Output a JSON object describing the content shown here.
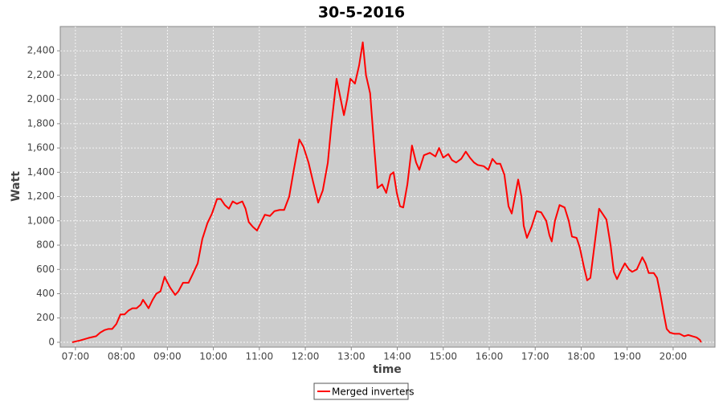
{
  "chart_data": {
    "type": "line",
    "title": "30-5-2016",
    "x_label": "time",
    "y_label": "Watt",
    "xlim": [
      6.67,
      20.91
    ],
    "ylim": [
      -40,
      2600
    ],
    "xticks": [
      {
        "value": 7,
        "label": "07:00"
      },
      {
        "value": 8,
        "label": "08:00"
      },
      {
        "value": 9,
        "label": "09:00"
      },
      {
        "value": 10,
        "label": "10:00"
      },
      {
        "value": 11,
        "label": "11:00"
      },
      {
        "value": 12,
        "label": "12:00"
      },
      {
        "value": 13,
        "label": "13:00"
      },
      {
        "value": 14,
        "label": "14:00"
      },
      {
        "value": 15,
        "label": "15:00"
      },
      {
        "value": 16,
        "label": "16:00"
      },
      {
        "value": 17,
        "label": "17:00"
      },
      {
        "value": 18,
        "label": "18:00"
      },
      {
        "value": 19,
        "label": "19:00"
      },
      {
        "value": 20,
        "label": "20:00"
      }
    ],
    "yticks": [
      0,
      200,
      400,
      600,
      800,
      {
        "value": 1000,
        "label": "1,000"
      },
      {
        "value": 1200,
        "label": "1,200"
      },
      {
        "value": 1400,
        "label": "1,400"
      },
      {
        "value": 1600,
        "label": "1,600"
      },
      {
        "value": 1800,
        "label": "1,800"
      },
      {
        "value": 2000,
        "label": "2,000"
      },
      {
        "value": 2200,
        "label": "2,200"
      },
      {
        "value": 2400,
        "label": "2,400"
      }
    ],
    "grid": true,
    "x": [
      6.93,
      7.1,
      7.28,
      7.45,
      7.54,
      7.63,
      7.72,
      7.8,
      7.89,
      7.98,
      8.07,
      8.15,
      8.24,
      8.33,
      8.42,
      8.47,
      8.54,
      8.59,
      8.68,
      8.76,
      8.85,
      8.94,
      8.99,
      9.06,
      9.17,
      9.24,
      9.34,
      9.46,
      9.55,
      9.66,
      9.76,
      9.87,
      9.97,
      10.08,
      10.16,
      10.25,
      10.34,
      10.42,
      10.51,
      10.63,
      10.7,
      10.77,
      10.86,
      10.95,
      11.04,
      11.12,
      11.23,
      11.33,
      11.44,
      11.54,
      11.65,
      11.75,
      11.87,
      11.96,
      12.07,
      12.17,
      12.28,
      12.38,
      12.49,
      12.57,
      12.68,
      12.77,
      12.84,
      12.91,
      12.98,
      13.08,
      13.17,
      13.25,
      13.32,
      13.41,
      13.5,
      13.57,
      13.67,
      13.76,
      13.85,
      13.92,
      13.99,
      14.06,
      14.13,
      14.22,
      14.32,
      14.41,
      14.48,
      14.58,
      14.71,
      14.83,
      14.91,
      15.0,
      15.11,
      15.19,
      15.28,
      15.39,
      15.49,
      15.58,
      15.67,
      15.75,
      15.88,
      15.98,
      16.07,
      16.16,
      16.24,
      16.33,
      16.42,
      16.49,
      16.56,
      16.63,
      16.7,
      16.75,
      16.82,
      16.92,
      17.03,
      17.13,
      17.24,
      17.31,
      17.36,
      17.43,
      17.53,
      17.64,
      17.73,
      17.8,
      17.9,
      17.97,
      18.06,
      18.13,
      18.2,
      18.29,
      18.39,
      18.48,
      18.55,
      18.64,
      18.71,
      18.78,
      18.88,
      18.95,
      19.04,
      19.11,
      19.21,
      19.33,
      19.4,
      19.47,
      19.58,
      19.65,
      19.72,
      19.79,
      19.86,
      19.93,
      20.03,
      20.14,
      20.24,
      20.33,
      20.42,
      20.51,
      20.58,
      20.61
    ],
    "series": [
      {
        "name": "Merged inverters",
        "color": "#ff0000",
        "values": [
          0,
          15,
          35,
          50,
          80,
          100,
          110,
          110,
          150,
          230,
          230,
          260,
          280,
          280,
          310,
          350,
          310,
          280,
          350,
          400,
          420,
          540,
          500,
          450,
          390,
          420,
          490,
          490,
          560,
          650,
          850,
          980,
          1060,
          1180,
          1180,
          1130,
          1100,
          1160,
          1140,
          1160,
          1100,
          990,
          950,
          920,
          990,
          1050,
          1040,
          1080,
          1090,
          1090,
          1200,
          1420,
          1670,
          1610,
          1480,
          1320,
          1150,
          1250,
          1480,
          1800,
          2170,
          2000,
          1870,
          2000,
          2170,
          2130,
          2280,
          2470,
          2200,
          2050,
          1600,
          1270,
          1300,
          1230,
          1380,
          1400,
          1230,
          1120,
          1110,
          1300,
          1620,
          1480,
          1420,
          1540,
          1560,
          1530,
          1600,
          1520,
          1550,
          1500,
          1480,
          1510,
          1570,
          1520,
          1480,
          1460,
          1450,
          1420,
          1510,
          1470,
          1470,
          1380,
          1120,
          1060,
          1200,
          1340,
          1200,
          960,
          860,
          950,
          1080,
          1070,
          1000,
          880,
          830,
          1000,
          1130,
          1110,
          1000,
          870,
          860,
          780,
          620,
          510,
          530,
          800,
          1100,
          1050,
          1010,
          800,
          580,
          520,
          600,
          650,
          600,
          580,
          600,
          700,
          650,
          570,
          570,
          530,
          400,
          250,
          110,
          80,
          70,
          70,
          50,
          60,
          50,
          40,
          20,
          0
        ]
      }
    ]
  }
}
